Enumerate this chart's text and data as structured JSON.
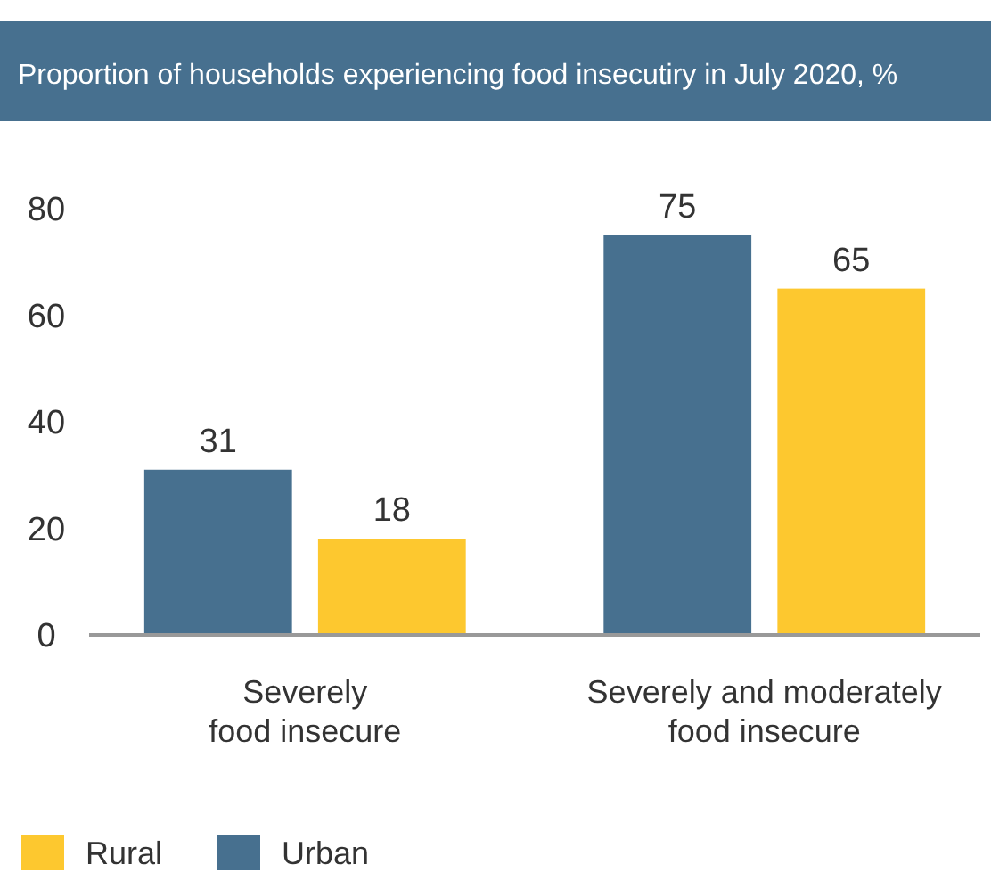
{
  "chart_data": {
    "type": "bar",
    "title": "Proportion of households experiencing food insecutiry in July 2020, %",
    "categories": [
      "Severely food insecure",
      "Severely and moderately food insecure"
    ],
    "series": [
      {
        "name": "Urban",
        "color": "#47708f",
        "values": [
          31,
          75
        ]
      },
      {
        "name": "Rural",
        "color": "#fdc82f",
        "values": [
          18,
          65
        ]
      }
    ],
    "ylim": [
      0,
      80
    ],
    "yticks": [
      0,
      20,
      40,
      60,
      80
    ],
    "data_labels": true,
    "legend": "bottom left",
    "grid": false
  }
}
